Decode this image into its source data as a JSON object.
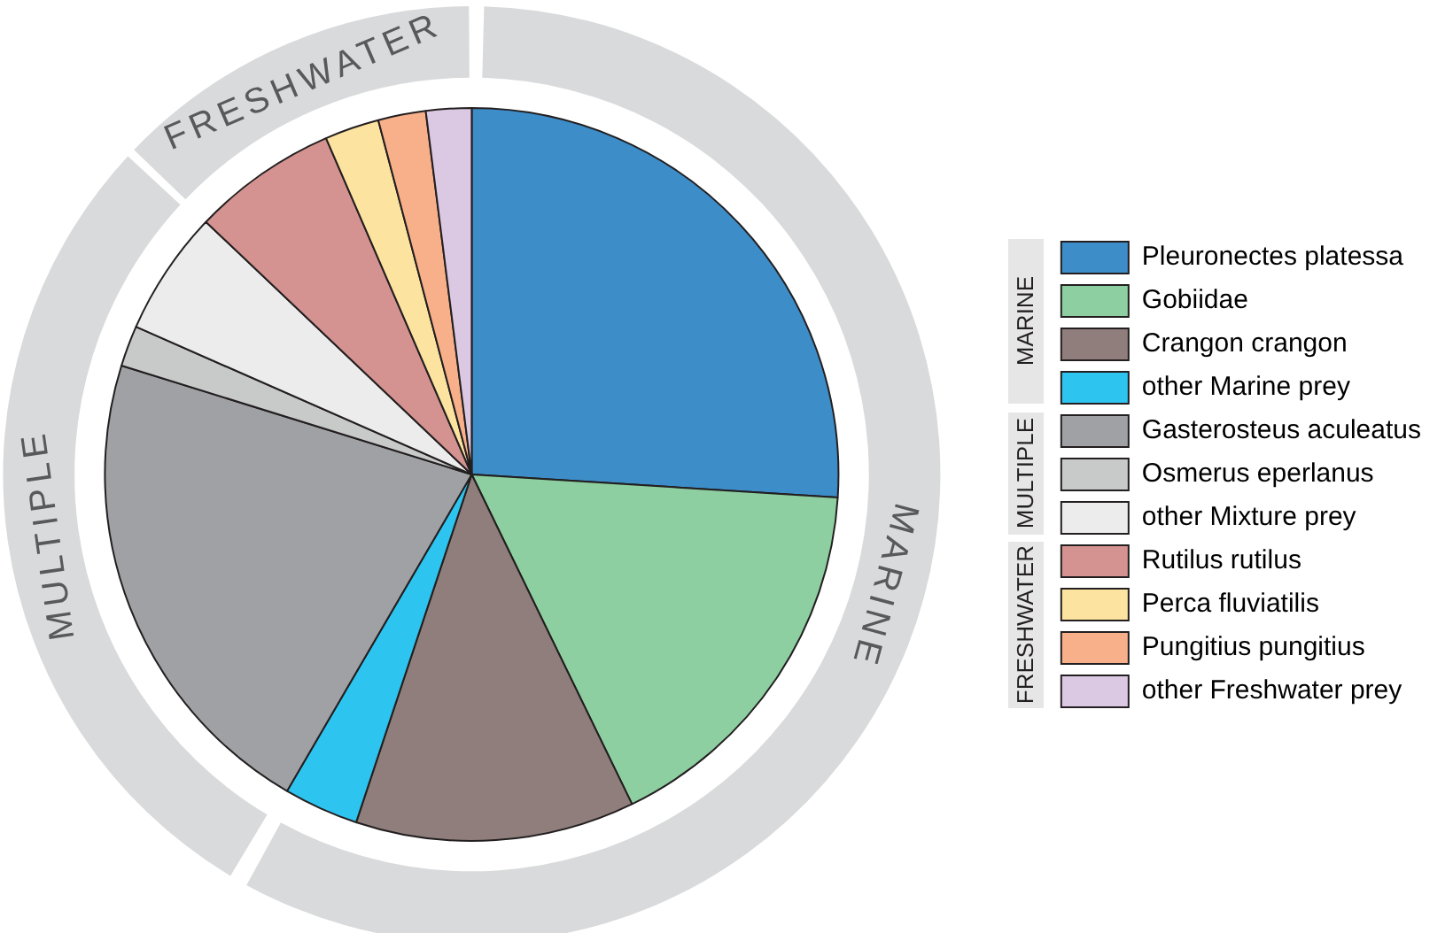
{
  "chart_data": [
    {
      "type": "pie",
      "legend": "right",
      "categories": [
        "Pleuronectes platessa",
        "Gobiidae",
        "Crangon crangon",
        "other Marine prey",
        "Gasterosteus aculeatus",
        "Osmerus eperlanus",
        "other Mixture prey",
        "Rutilus rutilus",
        "Perca fluviatilis",
        "Pungitius pungitius",
        "other Freshwater prey"
      ],
      "values": [
        26,
        16.8,
        12.3,
        3.3,
        21.4,
        1.8,
        5.5,
        6.4,
        2.4,
        2.1,
        2
      ],
      "colors": [
        "#3d8dc9",
        "#8dcfa0",
        "#8f7e7b",
        "#2ec4f0",
        "#a0a1a5",
        "#c8c9c9",
        "#ececec",
        "#d49390",
        "#fde3a0",
        "#f7b08a",
        "#dbc8e2"
      ]
    },
    {
      "type": "donut",
      "categories": [
        "MARINE",
        "MULTIPLE",
        "FRESHWATER"
      ],
      "values": [
        58.4,
        28.7,
        12.9
      ],
      "colors": [
        "#d9dadb",
        "#d9dadb",
        "#d9dadb"
      ]
    }
  ]
}
